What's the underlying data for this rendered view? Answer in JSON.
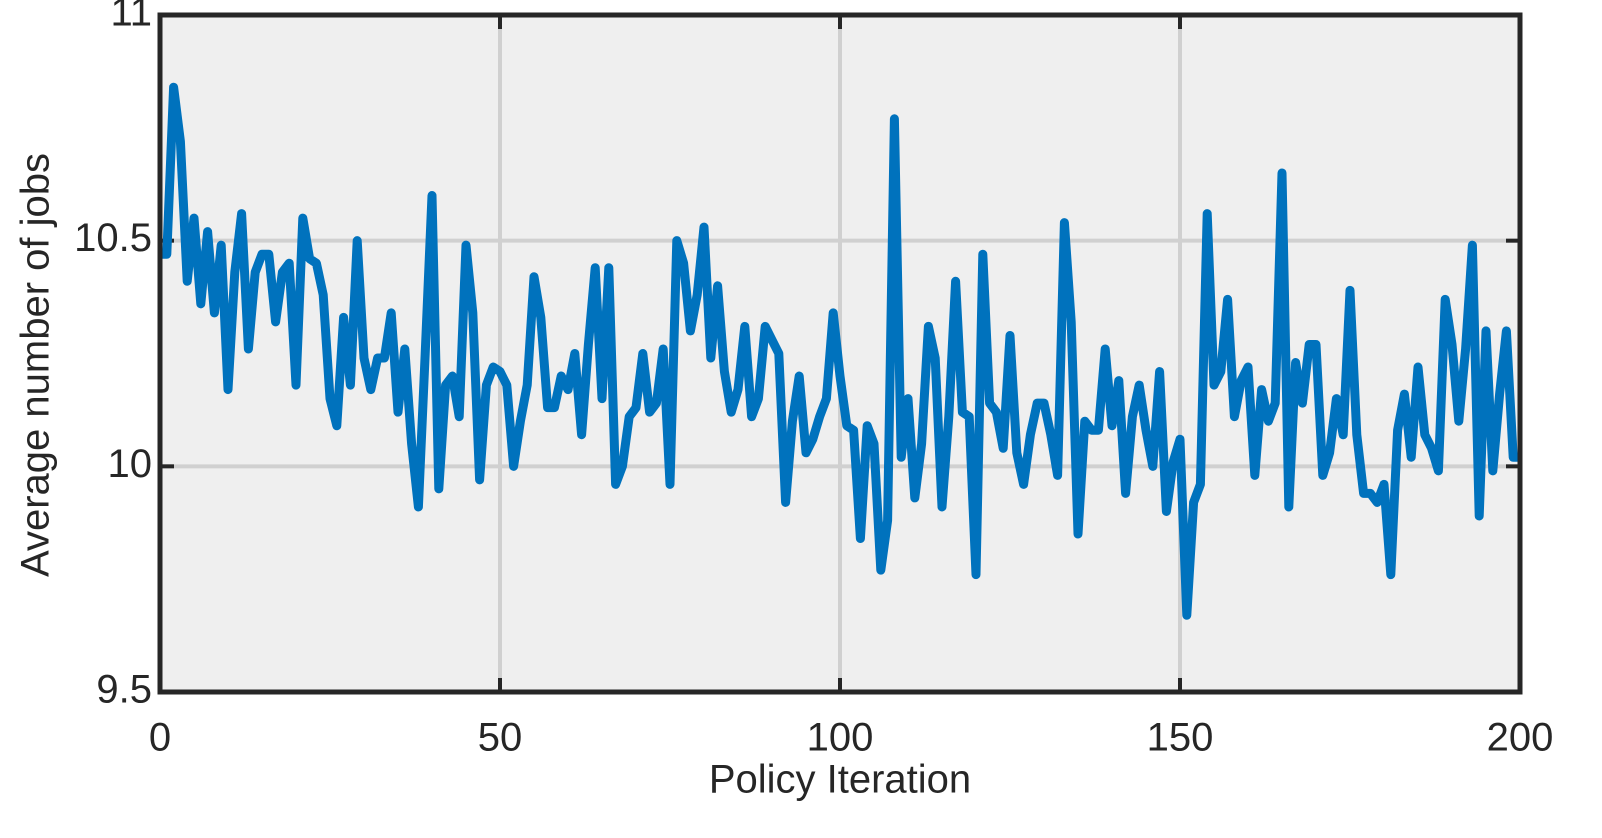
{
  "chart_data": {
    "type": "line",
    "xlabel": "Policy Iteration",
    "ylabel": "Average number of jobs",
    "x": [
      0,
      1,
      2,
      3,
      4,
      5,
      6,
      7,
      8,
      9,
      10,
      11,
      12,
      13,
      14,
      15,
      16,
      17,
      18,
      19,
      20,
      21,
      22,
      23,
      24,
      25,
      26,
      27,
      28,
      29,
      30,
      31,
      32,
      33,
      34,
      35,
      36,
      37,
      38,
      39,
      40,
      41,
      42,
      43,
      44,
      45,
      46,
      47,
      48,
      49,
      50,
      51,
      52,
      53,
      54,
      55,
      56,
      57,
      58,
      59,
      60,
      61,
      62,
      63,
      64,
      65,
      66,
      67,
      68,
      69,
      70,
      71,
      72,
      73,
      74,
      75,
      76,
      77,
      78,
      79,
      80,
      81,
      82,
      83,
      84,
      85,
      86,
      87,
      88,
      89,
      90,
      91,
      92,
      93,
      94,
      95,
      96,
      97,
      98,
      99,
      100,
      101,
      102,
      103,
      104,
      105,
      106,
      107,
      108,
      109,
      110,
      111,
      112,
      113,
      114,
      115,
      116,
      117,
      118,
      119,
      120,
      121,
      122,
      123,
      124,
      125,
      126,
      127,
      128,
      129,
      130,
      131,
      132,
      133,
      134,
      135,
      136,
      137,
      138,
      139,
      140,
      141,
      142,
      143,
      144,
      145,
      146,
      147,
      148,
      149,
      150,
      151,
      152,
      153,
      154,
      155,
      156,
      157,
      158,
      159,
      160,
      161,
      162,
      163,
      164,
      165,
      166,
      167,
      168,
      169,
      170,
      171,
      172,
      173,
      174,
      175,
      176,
      177,
      178,
      179,
      180,
      181,
      182,
      183,
      184,
      185,
      186,
      187,
      188,
      189,
      190,
      191,
      192,
      193,
      194,
      195,
      196,
      197,
      198,
      199,
      200
    ],
    "series": [
      {
        "color": "#0072bd",
        "values": [
          10.47,
          10.47,
          10.84,
          10.72,
          10.41,
          10.55,
          10.36,
          10.52,
          10.34,
          10.49,
          10.17,
          10.43,
          10.56,
          10.26,
          10.43,
          10.47,
          10.47,
          10.32,
          10.43,
          10.45,
          10.18,
          10.55,
          10.46,
          10.45,
          10.38,
          10.15,
          10.09,
          10.33,
          10.18,
          10.5,
          10.24,
          10.17,
          10.24,
          10.24,
          10.34,
          10.12,
          10.26,
          10.05,
          9.91,
          10.25,
          10.6,
          9.95,
          10.18,
          10.2,
          10.11,
          10.49,
          10.34,
          9.97,
          10.18,
          10.22,
          10.21,
          10.18,
          10.0,
          10.1,
          10.18,
          10.42,
          10.33,
          10.13,
          10.13,
          10.2,
          10.17,
          10.25,
          10.07,
          10.27,
          10.44,
          10.15,
          10.44,
          9.96,
          10.0,
          10.11,
          10.13,
          10.25,
          10.12,
          10.14,
          10.26,
          9.96,
          10.5,
          10.45,
          10.3,
          10.38,
          10.53,
          10.24,
          10.4,
          10.21,
          10.12,
          10.17,
          10.31,
          10.11,
          10.15,
          10.31,
          10.28,
          10.25,
          9.92,
          10.1,
          10.2,
          10.03,
          10.06,
          10.11,
          10.15,
          10.34,
          10.2,
          10.09,
          10.08,
          9.84,
          10.09,
          10.05,
          9.77,
          9.88,
          10.77,
          10.02,
          10.15,
          9.93,
          10.05,
          10.31,
          10.24,
          9.91,
          10.11,
          10.41,
          10.12,
          10.11,
          9.76,
          10.47,
          10.14,
          10.12,
          10.04,
          10.29,
          10.03,
          9.96,
          10.07,
          10.14,
          10.14,
          10.07,
          9.98,
          10.54,
          10.32,
          9.85,
          10.1,
          10.08,
          10.08,
          10.26,
          10.09,
          10.19,
          9.94,
          10.11,
          10.18,
          10.08,
          10.0,
          10.21,
          9.9,
          10.01,
          10.06,
          9.67,
          9.92,
          9.96,
          10.56,
          10.18,
          10.21,
          10.37,
          10.11,
          10.19,
          10.22,
          9.98,
          10.17,
          10.1,
          10.14,
          10.65,
          9.91,
          10.23,
          10.14,
          10.27,
          10.27,
          9.98,
          10.03,
          10.15,
          10.07,
          10.39,
          10.07,
          9.94,
          9.94,
          9.92,
          9.96,
          9.76,
          10.08,
          10.16,
          10.02,
          10.22,
          10.07,
          10.04,
          9.99,
          10.37,
          10.27,
          10.1,
          10.26,
          10.49,
          9.89,
          10.3,
          9.99,
          10.16,
          10.3,
          10.02,
          10.02
        ]
      }
    ],
    "xlim": [
      0,
      200
    ],
    "xticks": [
      0,
      50,
      100,
      150,
      200
    ],
    "ylim": [
      9.5,
      11
    ],
    "yticks": [
      9.5,
      10,
      10.5,
      11
    ],
    "grid": true,
    "background": "#efefef"
  }
}
